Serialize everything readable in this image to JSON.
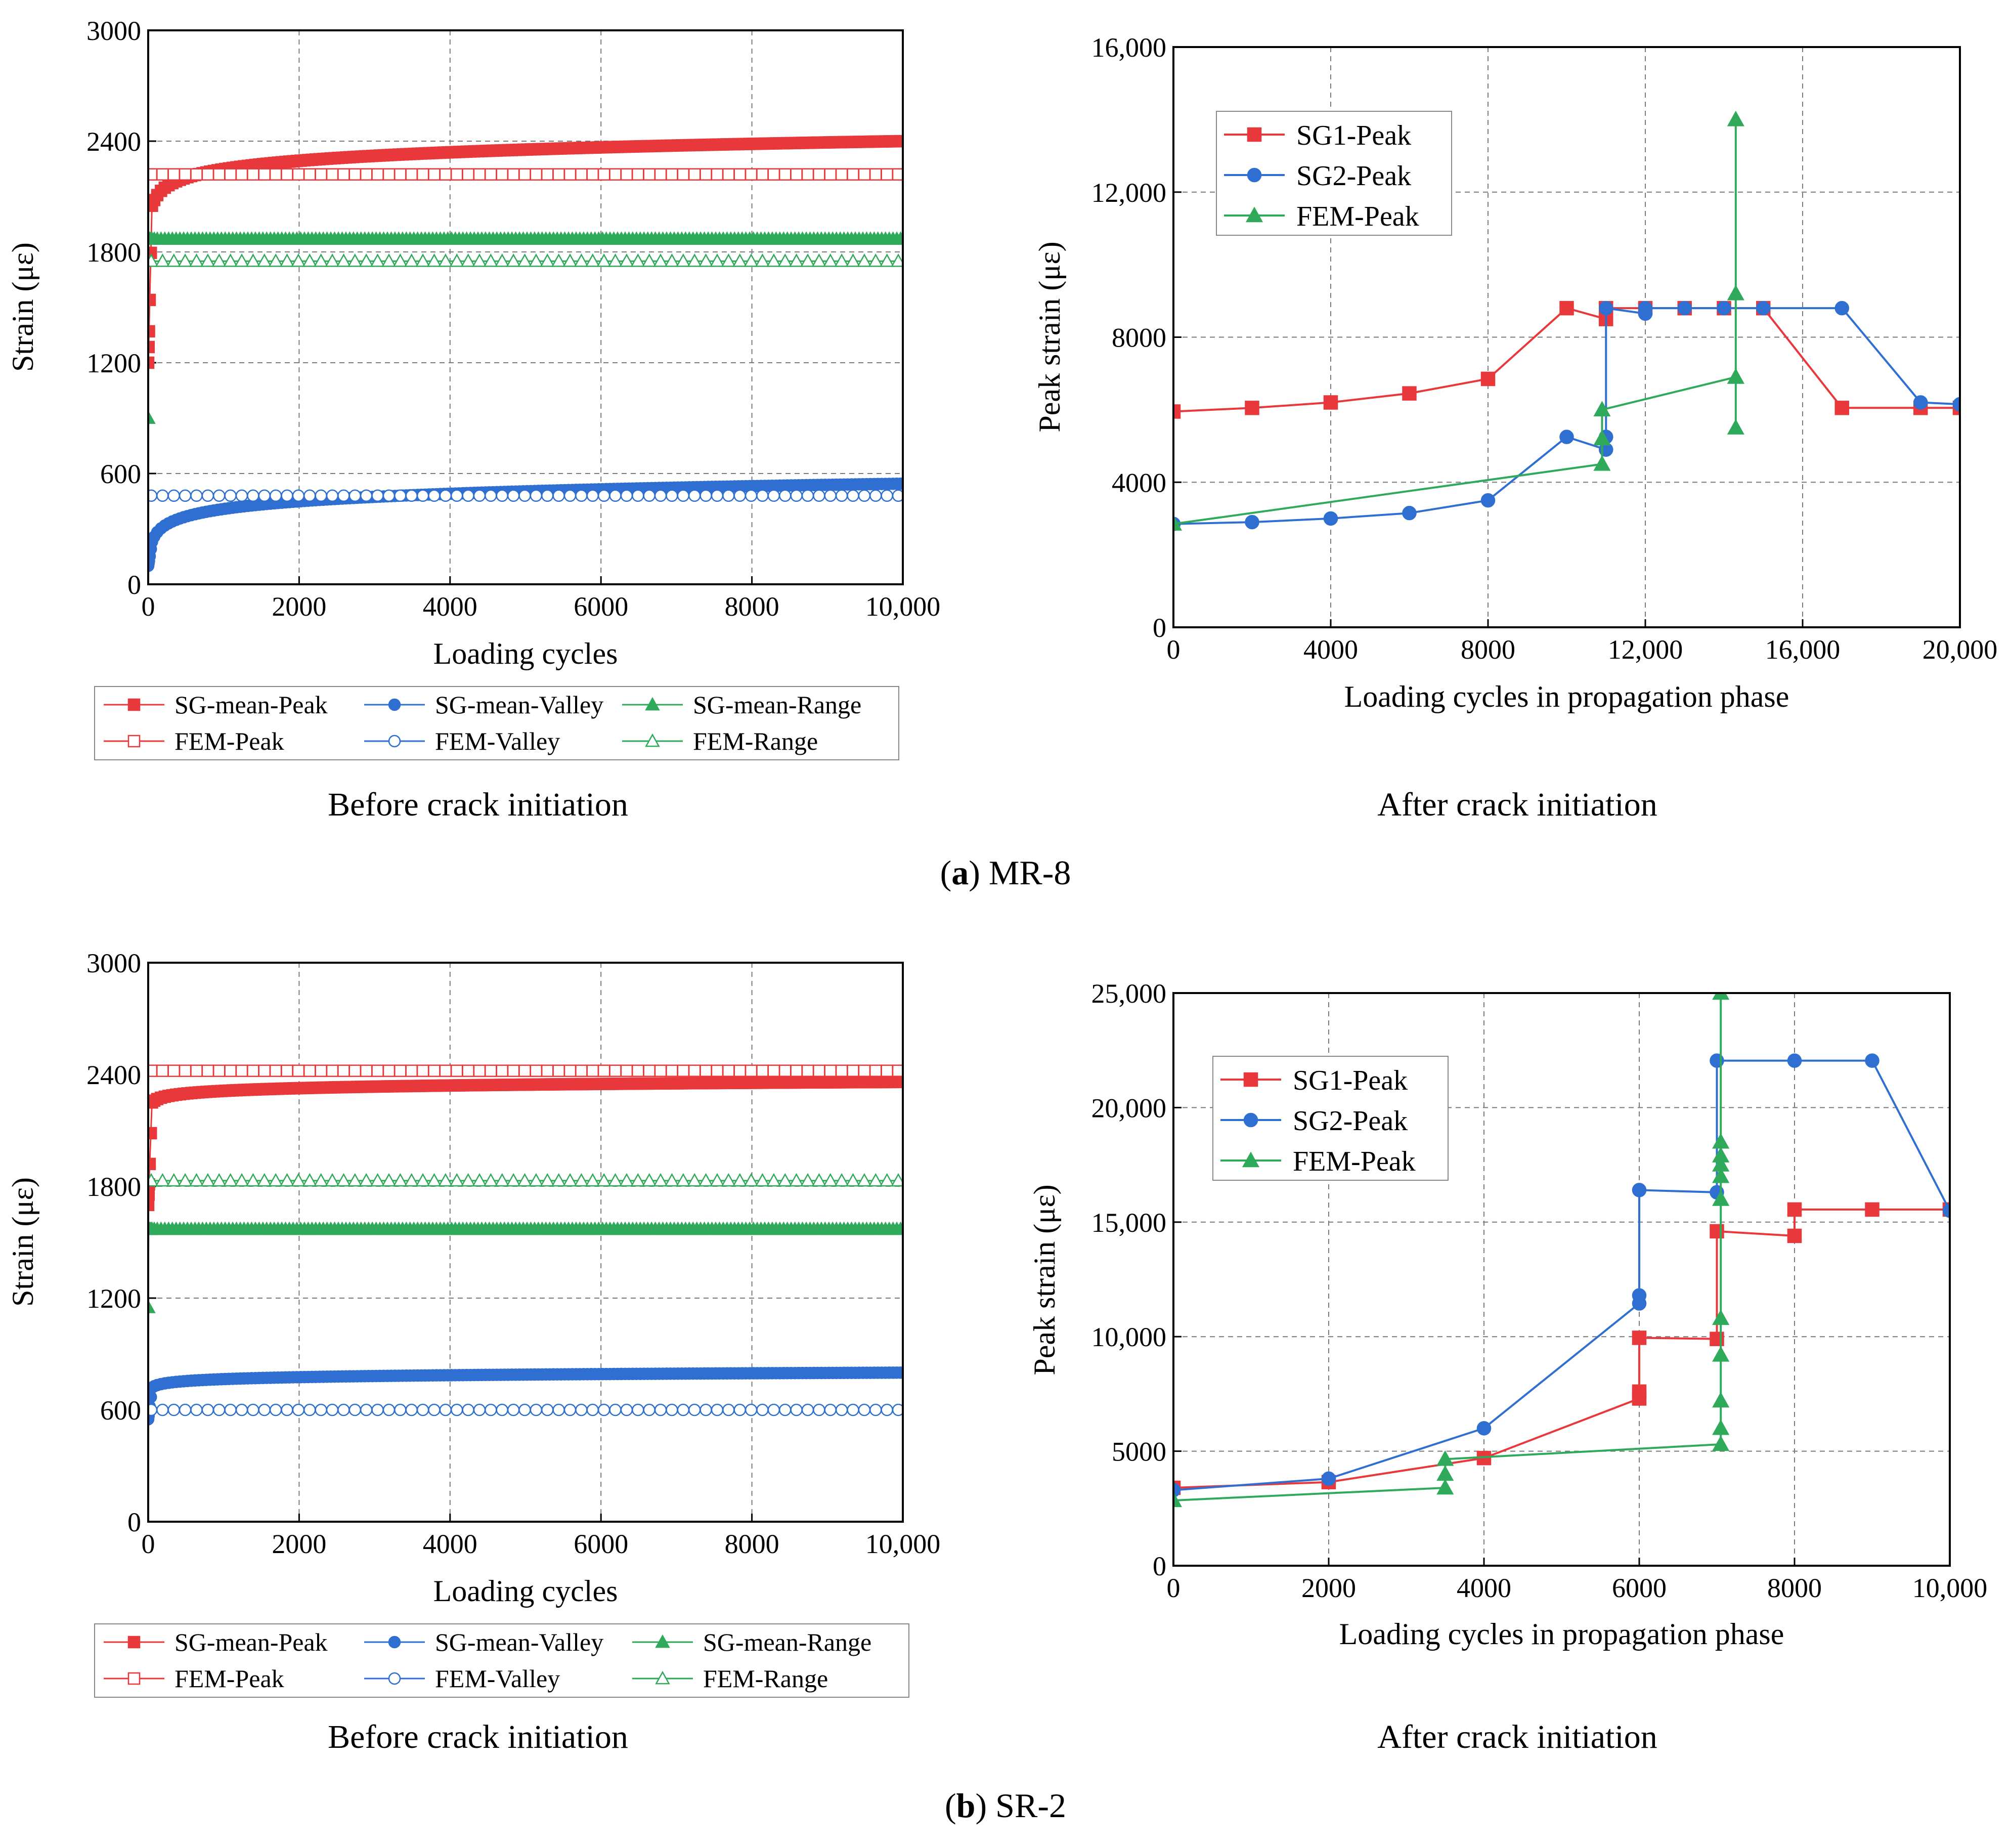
{
  "figure": {
    "caption_a_letter": "a",
    "caption_a_text": "MR-8",
    "caption_b_letter": "b",
    "caption_b_text": "SR-2"
  },
  "colors": {
    "red": "#e8383b",
    "blue": "#2f6fd1",
    "green": "#2faa5a",
    "grid": "#7a7a7a"
  },
  "chart_data": [
    {
      "id": "a_left",
      "type": "line",
      "subtitle": "Before crack initiation",
      "xlabel": "Loading cycles",
      "ylabel": "Strain (με)",
      "xlim": [
        0,
        10000
      ],
      "ylim": [
        0,
        3000
      ],
      "xticks": [
        0,
        2000,
        4000,
        6000,
        8000,
        10000
      ],
      "xtick_labels": [
        "0",
        "2000",
        "4000",
        "6000",
        "8000",
        "10,000"
      ],
      "yticks": [
        0,
        600,
        1200,
        1800,
        2400,
        3000
      ],
      "ytick_labels": [
        "0",
        "600",
        "1200",
        "1800",
        "2400",
        "3000"
      ],
      "grid": true,
      "legend_position": "below",
      "series": [
        {
          "name": "SG-mean-Peak",
          "color": "red",
          "marker": "square",
          "filled": true,
          "model": "log",
          "y0": 1200,
          "y1": 2050,
          "y2": 2400
        },
        {
          "name": "SG-mean-Valley",
          "color": "blue",
          "marker": "circle",
          "filled": true,
          "model": "log",
          "y0": 100,
          "y1": 230,
          "y2": 545
        },
        {
          "name": "SG-mean-Range",
          "color": "green",
          "marker": "triangle",
          "filled": true,
          "model": "step",
          "y0": 900,
          "y1": 1870,
          "y2": 1870
        },
        {
          "name": "FEM-Peak",
          "color": "red",
          "marker": "square",
          "filled": false,
          "model": "const",
          "y1": 2220
        },
        {
          "name": "FEM-Valley",
          "color": "blue",
          "marker": "circle",
          "filled": false,
          "model": "const",
          "y1": 480
        },
        {
          "name": "FEM-Range",
          "color": "green",
          "marker": "triangle",
          "filled": false,
          "model": "const",
          "y1": 1750
        }
      ]
    },
    {
      "id": "a_right",
      "type": "line",
      "subtitle": "After crack initiation",
      "xlabel": "Loading cycles in propagation phase",
      "ylabel": "Peak strain (με)",
      "xlim": [
        0,
        20000
      ],
      "ylim": [
        0,
        16000
      ],
      "xticks": [
        0,
        4000,
        8000,
        12000,
        16000,
        20000
      ],
      "xtick_labels": [
        "0",
        "4000",
        "8000",
        "12,000",
        "16,000",
        "20,000"
      ],
      "yticks": [
        0,
        4000,
        8000,
        12000,
        16000
      ],
      "ytick_labels": [
        "0",
        "4000",
        "8000",
        "12,000",
        "16,000"
      ],
      "grid": true,
      "legend_position": "top-left",
      "series": [
        {
          "name": "SG1-Peak",
          "color": "red",
          "marker": "square",
          "x": [
            0,
            2000,
            4000,
            6000,
            8000,
            10000,
            11000,
            11000,
            12000,
            13000,
            14000,
            15000,
            17000,
            19000,
            20000
          ],
          "y": [
            5950,
            6050,
            6200,
            6450,
            6850,
            8800,
            8500,
            8800,
            8800,
            8800,
            8800,
            8800,
            6050,
            6050,
            6050
          ]
        },
        {
          "name": "SG2-Peak",
          "color": "blue",
          "marker": "circle",
          "x": [
            0,
            2000,
            4000,
            6000,
            8000,
            10000,
            11000,
            11000,
            11000,
            12000,
            12000,
            13000,
            14000,
            15000,
            17000,
            19000,
            20000
          ],
          "y": [
            2850,
            2900,
            3000,
            3150,
            3500,
            5250,
            4900,
            5250,
            8800,
            8650,
            8800,
            8800,
            8800,
            8800,
            8800,
            6200,
            6150
          ]
        },
        {
          "name": "FEM-Peak",
          "color": "green",
          "marker": "triangle",
          "x": [
            0,
            10900,
            10900,
            10900,
            14300,
            14300,
            14300,
            14300,
            14300
          ],
          "y": [
            2850,
            4500,
            5200,
            6000,
            6900,
            5500,
            14000,
            9200,
            6900
          ]
        }
      ]
    },
    {
      "id": "b_left",
      "type": "line",
      "subtitle": "Before crack initiation",
      "xlabel": "Loading cycles",
      "ylabel": "Strain (με)",
      "xlim": [
        0,
        10000
      ],
      "ylim": [
        0,
        3000
      ],
      "xticks": [
        0,
        2000,
        4000,
        6000,
        8000,
        10000
      ],
      "xtick_labels": [
        "0",
        "2000",
        "4000",
        "6000",
        "8000",
        "10,000"
      ],
      "yticks": [
        0,
        600,
        1200,
        1800,
        2400,
        3000
      ],
      "ytick_labels": [
        "0",
        "600",
        "1200",
        "1800",
        "2400",
        "3000"
      ],
      "grid": true,
      "legend_position": "below",
      "series": [
        {
          "name": "SG-mean-Peak",
          "color": "red",
          "marker": "square",
          "filled": true,
          "model": "log",
          "y0": 1700,
          "y1": 2250,
          "y2": 2360
        },
        {
          "name": "SG-mean-Valley",
          "color": "blue",
          "marker": "circle",
          "filled": true,
          "model": "log",
          "y0": 550,
          "y1": 720,
          "y2": 800
        },
        {
          "name": "SG-mean-Range",
          "color": "green",
          "marker": "triangle",
          "filled": true,
          "model": "step",
          "y0": 1150,
          "y1": 1570,
          "y2": 1570
        },
        {
          "name": "FEM-Peak",
          "color": "red",
          "marker": "square",
          "filled": false,
          "model": "const",
          "y1": 2420
        },
        {
          "name": "FEM-Valley",
          "color": "blue",
          "marker": "circle",
          "filled": false,
          "model": "const",
          "y1": 600
        },
        {
          "name": "FEM-Range",
          "color": "green",
          "marker": "triangle",
          "filled": false,
          "model": "const",
          "y1": 1830
        }
      ]
    },
    {
      "id": "b_right",
      "type": "line",
      "subtitle": "After crack initiation",
      "xlabel": "Loading cycles in propagation phase",
      "ylabel": "Peak strain (με)",
      "xlim": [
        0,
        10000
      ],
      "ylim": [
        0,
        25000
      ],
      "xticks": [
        0,
        2000,
        4000,
        6000,
        8000,
        10000
      ],
      "xtick_labels": [
        "0",
        "2000",
        "4000",
        "6000",
        "8000",
        "10,000"
      ],
      "yticks": [
        0,
        5000,
        10000,
        15000,
        20000,
        25000
      ],
      "ytick_labels": [
        "0",
        "5000",
        "10,000",
        "15,000",
        "20,000",
        "25,000"
      ],
      "grid": true,
      "legend_position": "top-left",
      "series": [
        {
          "name": "SG1-Peak",
          "color": "red",
          "marker": "square",
          "x": [
            0,
            2000,
            4000,
            6000,
            6000,
            6000,
            7000,
            7000,
            8000,
            8000,
            9000,
            10000
          ],
          "y": [
            3400,
            3650,
            4700,
            7300,
            7600,
            9950,
            9900,
            14600,
            14400,
            15550,
            15550,
            15550
          ]
        },
        {
          "name": "SG2-Peak",
          "color": "blue",
          "marker": "circle",
          "x": [
            0,
            2000,
            4000,
            6000,
            6000,
            6000,
            7000,
            7000,
            8000,
            9000,
            10000
          ],
          "y": [
            3300,
            3800,
            6000,
            11450,
            11800,
            16400,
            16300,
            22050,
            22050,
            22050,
            15500
          ]
        },
        {
          "name": "FEM-Peak",
          "color": "green",
          "marker": "triangle",
          "x": [
            0,
            3500,
            3500,
            3500,
            7050,
            7050,
            7050,
            7050,
            7050,
            7050,
            7050,
            7050,
            7050,
            7050,
            7050
          ],
          "y": [
            2850,
            3400,
            4000,
            4650,
            5300,
            6000,
            7200,
            9200,
            10800,
            16000,
            17000,
            17500,
            17900,
            18500,
            25000
          ]
        }
      ]
    }
  ]
}
